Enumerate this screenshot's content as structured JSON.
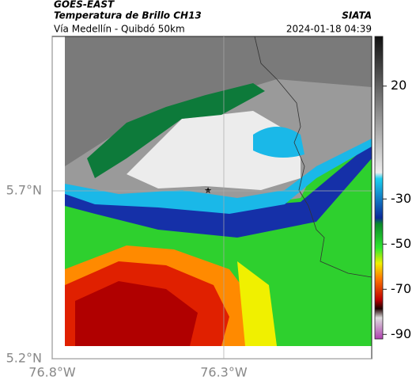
{
  "header": {
    "source": "GOES-EAST",
    "title": "Temperatura de Brillo CH13",
    "brand": "SIATA",
    "subtitle": "Vía Medellín - Quibdó 50km",
    "timestamp": "2024-01-18 04:39"
  },
  "map": {
    "xlim": [
      -76.8,
      -75.869
    ],
    "ylim": [
      5.2,
      6.16
    ],
    "xticks": [
      {
        "value": -76.8,
        "label": "76.8°W"
      },
      {
        "value": -76.3,
        "label": "76.3°W"
      }
    ],
    "yticks": [
      {
        "value": 5.7,
        "label": "5.7°N"
      },
      {
        "value": 5.2,
        "label": "5.2°N"
      }
    ],
    "colorbar": {
      "lim": [
        42,
        -92
      ],
      "ticks": [
        20,
        -30,
        -50,
        -70,
        -90
      ]
    }
  }
}
